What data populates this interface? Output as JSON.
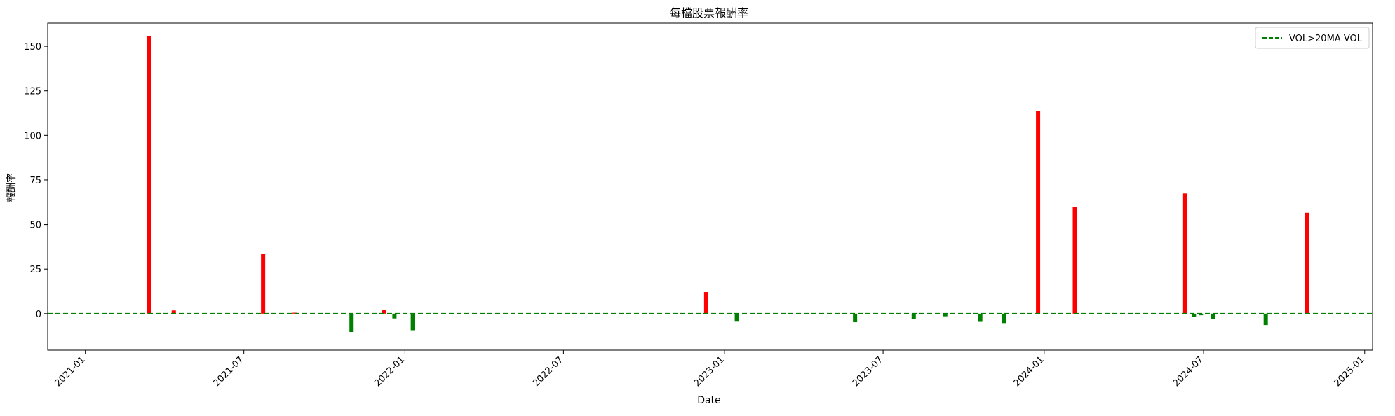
{
  "chart_data": {
    "type": "bar",
    "title": "每檔股票報酬率",
    "xlabel": "Date",
    "ylabel": "報酬率",
    "x_domain": [
      "2020-11-19",
      "2025-01-10"
    ],
    "ylim": [
      -20.5,
      163
    ],
    "x_ticks": [
      {
        "date": "2021-01-01",
        "label": "2021-01"
      },
      {
        "date": "2021-07-01",
        "label": "2021-07"
      },
      {
        "date": "2022-01-01",
        "label": "2022-01"
      },
      {
        "date": "2022-07-01",
        "label": "2022-07"
      },
      {
        "date": "2023-01-01",
        "label": "2023-01"
      },
      {
        "date": "2023-07-01",
        "label": "2023-07"
      },
      {
        "date": "2024-01-01",
        "label": "2024-01"
      },
      {
        "date": "2024-07-01",
        "label": "2024-07"
      },
      {
        "date": "2025-01-01",
        "label": "2025-01"
      }
    ],
    "y_ticks": [
      0,
      25,
      50,
      75,
      100,
      125,
      150
    ],
    "grid": false,
    "legend": {
      "position": "top-right",
      "entries": [
        {
          "label": "VOL>20MA VOL",
          "color": "#008000",
          "style": "dashed"
        }
      ]
    },
    "colors": {
      "positive": "#ff0000",
      "negative": "#008000",
      "reference_line": "#008000"
    },
    "reference_line": {
      "y": 0,
      "style": "dashed"
    },
    "points": [
      {
        "date": "2021-03-15",
        "value": 155.7
      },
      {
        "date": "2021-04-12",
        "value": 1.8
      },
      {
        "date": "2021-07-23",
        "value": 33.6
      },
      {
        "date": "2021-08-28",
        "value": 0.5
      },
      {
        "date": "2021-09-27",
        "value": -0.4
      },
      {
        "date": "2021-11-01",
        "value": -10.3
      },
      {
        "date": "2021-12-08",
        "value": 2.1
      },
      {
        "date": "2021-12-20",
        "value": -2.7
      },
      {
        "date": "2022-01-10",
        "value": -9.3
      },
      {
        "date": "2022-12-11",
        "value": 12.1
      },
      {
        "date": "2023-01-15",
        "value": -4.5
      },
      {
        "date": "2023-02-10",
        "value": 0.3
      },
      {
        "date": "2023-05-30",
        "value": -4.8
      },
      {
        "date": "2023-08-05",
        "value": -2.9
      },
      {
        "date": "2023-09-10",
        "value": -1.5
      },
      {
        "date": "2023-10-20",
        "value": -4.6
      },
      {
        "date": "2023-11-16",
        "value": -5.3
      },
      {
        "date": "2023-12-25",
        "value": 113.8
      },
      {
        "date": "2024-02-05",
        "value": 60.0
      },
      {
        "date": "2024-06-10",
        "value": 67.4
      },
      {
        "date": "2024-06-20",
        "value": -1.9
      },
      {
        "date": "2024-06-28",
        "value": -0.9
      },
      {
        "date": "2024-07-12",
        "value": -2.9
      },
      {
        "date": "2024-09-10",
        "value": -6.4
      },
      {
        "date": "2024-10-27",
        "value": 56.6
      }
    ]
  }
}
